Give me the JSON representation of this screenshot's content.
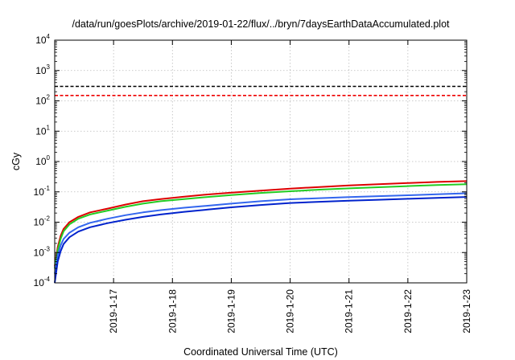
{
  "chart_data": {
    "type": "line",
    "title": "/data/run/goesPlots/archive/2019-01-22/flux/../bryn/7daysEarthDataAccumulated.plot",
    "xlabel": "Coordinated Universal Time (UTC)",
    "ylabel": "cGy",
    "y_scale": "log",
    "ylim": [
      0.0001,
      10000
    ],
    "y_ticks": [
      {
        "value": 0.0001,
        "base": "10",
        "exp": "-4"
      },
      {
        "value": 0.001,
        "base": "10",
        "exp": "-3"
      },
      {
        "value": 0.01,
        "base": "10",
        "exp": "-2"
      },
      {
        "value": 0.1,
        "base": "10",
        "exp": "-1"
      },
      {
        "value": 1,
        "base": "10",
        "exp": "0"
      },
      {
        "value": 10,
        "base": "10",
        "exp": "1"
      },
      {
        "value": 100,
        "base": "10",
        "exp": "2"
      },
      {
        "value": 1000,
        "base": "10",
        "exp": "3"
      },
      {
        "value": 10000,
        "base": "10",
        "exp": "4"
      }
    ],
    "xlim": [
      16.0,
      23.0
    ],
    "x_ticks": [
      {
        "value": 17,
        "label": "2019-1-17"
      },
      {
        "value": 18,
        "label": "2019-1-18"
      },
      {
        "value": 19,
        "label": "2019-1-19"
      },
      {
        "value": 20,
        "label": "2019-1-20"
      },
      {
        "value": 21,
        "label": "2019-1-21"
      },
      {
        "value": 22,
        "label": "2019-1-22"
      },
      {
        "value": 23,
        "label": "2019-1-23"
      }
    ],
    "grid": true,
    "reference_lines": [
      {
        "value": 300,
        "color": "#000000",
        "style": "dashed"
      },
      {
        "value": 150,
        "color": "#ee0000",
        "style": "dashed"
      }
    ],
    "series": [
      {
        "color": "#dd0000",
        "x": [
          16.0,
          16.05,
          16.1,
          16.15,
          16.25,
          16.4,
          16.6,
          16.9,
          17.2,
          17.5,
          17.8,
          18.2,
          18.6,
          19.0,
          19.5,
          20.0,
          20.5,
          21.0,
          21.5,
          22.0,
          22.5,
          23.0
        ],
        "y": [
          0.00035,
          0.0015,
          0.0035,
          0.006,
          0.01,
          0.015,
          0.021,
          0.028,
          0.038,
          0.049,
          0.058,
          0.069,
          0.082,
          0.094,
          0.11,
          0.128,
          0.145,
          0.162,
          0.178,
          0.195,
          0.212,
          0.226
        ]
      },
      {
        "color": "#22cc22",
        "x": [
          16.0,
          16.05,
          16.1,
          16.15,
          16.25,
          16.4,
          16.6,
          16.9,
          17.2,
          17.5,
          17.8,
          18.2,
          18.6,
          19.0,
          19.5,
          20.0,
          20.5,
          21.0,
          21.5,
          22.0,
          22.5,
          23.0
        ],
        "y": [
          0.0003,
          0.0012,
          0.0028,
          0.005,
          0.0085,
          0.013,
          0.018,
          0.024,
          0.032,
          0.041,
          0.049,
          0.058,
          0.068,
          0.078,
          0.092,
          0.105,
          0.118,
          0.13,
          0.142,
          0.155,
          0.167,
          0.178
        ]
      },
      {
        "color": "#3366ee",
        "x": [
          16.0,
          16.05,
          16.1,
          16.15,
          16.25,
          16.4,
          16.6,
          16.9,
          17.2,
          17.5,
          17.8,
          18.2,
          18.6,
          19.0,
          19.5,
          20.0,
          20.5,
          21.0,
          21.5,
          22.0,
          22.5,
          23.0
        ],
        "y": [
          0.0002,
          0.0008,
          0.0017,
          0.0028,
          0.0045,
          0.0068,
          0.0095,
          0.013,
          0.017,
          0.021,
          0.025,
          0.03,
          0.035,
          0.041,
          0.049,
          0.057,
          0.062,
          0.067,
          0.072,
          0.077,
          0.083,
          0.09
        ]
      },
      {
        "color": "#0022cc",
        "x": [
          16.0,
          16.05,
          16.1,
          16.15,
          16.25,
          16.4,
          16.6,
          16.9,
          17.2,
          17.5,
          17.8,
          18.2,
          18.6,
          19.0,
          19.5,
          20.0,
          20.5,
          21.0,
          21.5,
          22.0,
          22.5,
          23.0
        ],
        "y": [
          0.0001,
          0.0005,
          0.0011,
          0.0019,
          0.0032,
          0.0049,
          0.0068,
          0.0093,
          0.012,
          0.015,
          0.018,
          0.022,
          0.026,
          0.031,
          0.037,
          0.043,
          0.047,
          0.051,
          0.055,
          0.059,
          0.063,
          0.068
        ]
      }
    ]
  }
}
